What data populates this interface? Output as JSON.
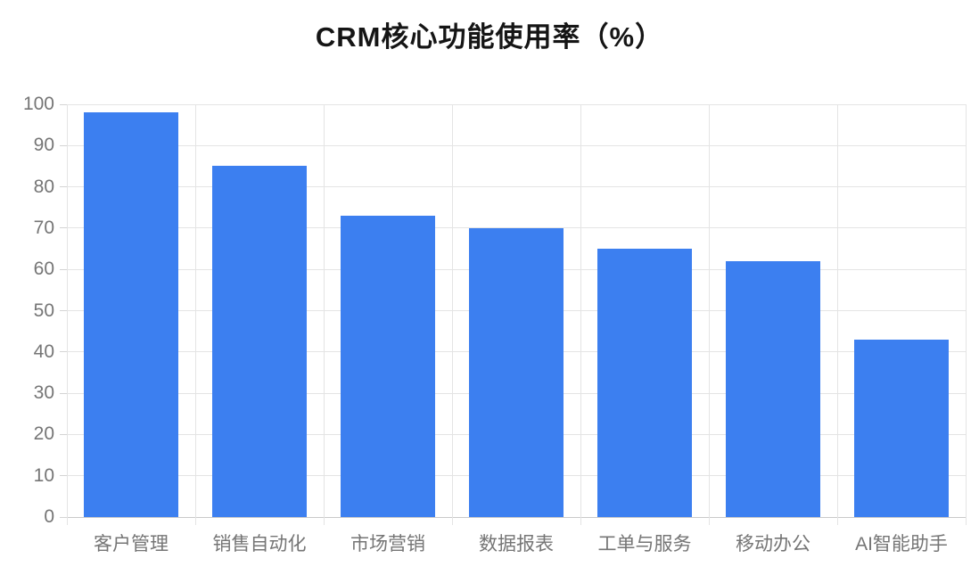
{
  "chart_data": {
    "type": "bar",
    "title": "CRM核心功能使用率（%）",
    "categories": [
      "客户管理",
      "销售自动化",
      "市场营销",
      "数据报表",
      "工单与服务",
      "移动办公",
      "AI智能助手"
    ],
    "values": [
      98,
      85,
      73,
      70,
      65,
      62,
      43
    ],
    "xlabel": "",
    "ylabel": "",
    "ylim": [
      0,
      100
    ],
    "yticks": [
      0,
      10,
      20,
      30,
      40,
      50,
      60,
      70,
      80,
      90,
      100
    ],
    "grid": true,
    "legend": "none",
    "bar_color": "#3C7FF0",
    "gridline_color": "#e4e4e4",
    "baseline_color": "#c9c9c9",
    "tick_label_color": "#757575",
    "title_color": "#151515",
    "background_color": "#ffffff"
  }
}
